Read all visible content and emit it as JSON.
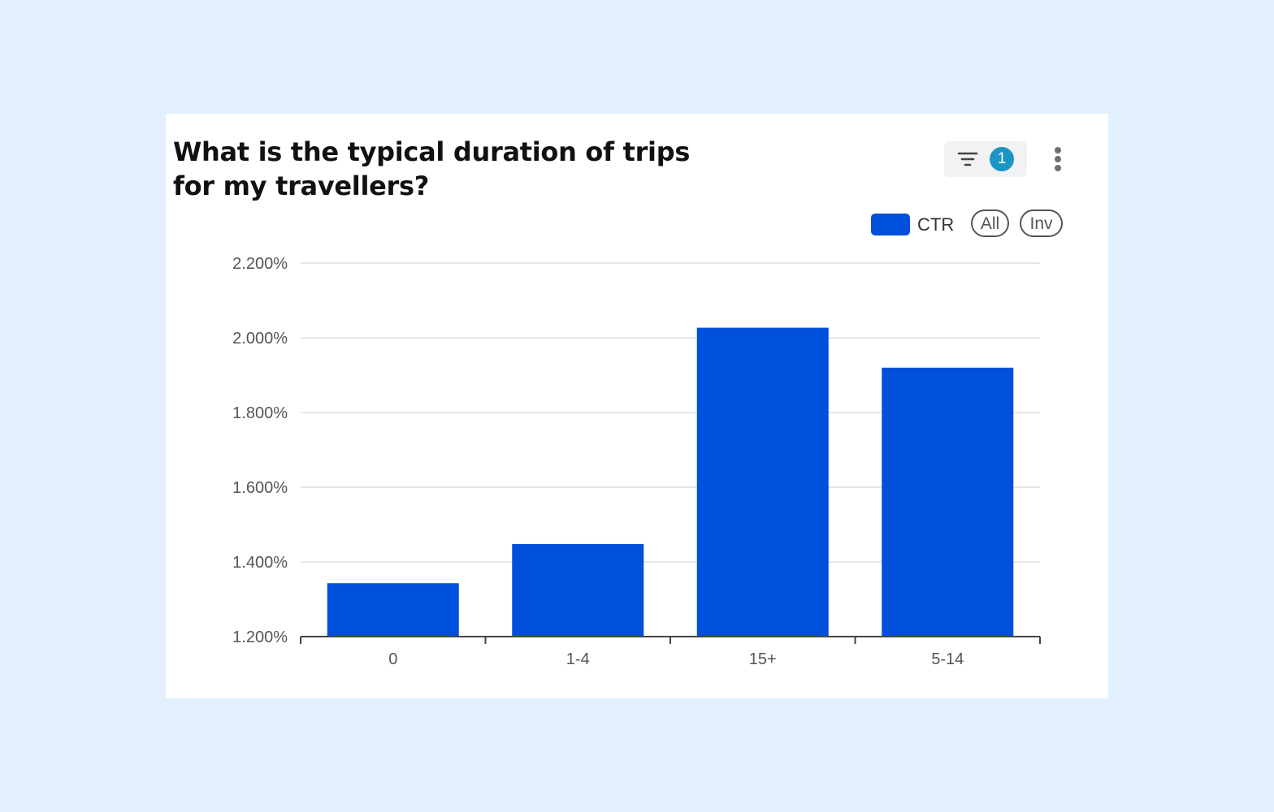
{
  "card": {
    "title": "What is the typical duration of trips for my travellers?"
  },
  "toolbar": {
    "filter_icon": "filter-icon",
    "filter_count": "1",
    "more_icon": "more-vertical-icon"
  },
  "legend": {
    "series_label": "CTR",
    "all_label": "All",
    "inv_label": "Inv"
  },
  "colors": {
    "bar": "#0050db",
    "badge": "#1b95c4",
    "grid": "#e3e7ec",
    "axis": "#444444"
  },
  "chart_data": {
    "type": "bar",
    "categories": [
      "0",
      "1-4",
      "15+",
      "5-14"
    ],
    "series": [
      {
        "name": "CTR",
        "values": [
          1.343,
          1.448,
          2.027,
          1.92
        ]
      }
    ],
    "ylim": [
      1.2,
      2.2
    ],
    "yticks": [
      1.2,
      1.4,
      1.6,
      1.8,
      2.0,
      2.2
    ],
    "ytick_labels": [
      "1.200%",
      "1.400%",
      "1.600%",
      "1.800%",
      "2.000%",
      "2.200%"
    ],
    "grid": true,
    "legend_position": "top-right",
    "xlabel": "",
    "ylabel": ""
  }
}
